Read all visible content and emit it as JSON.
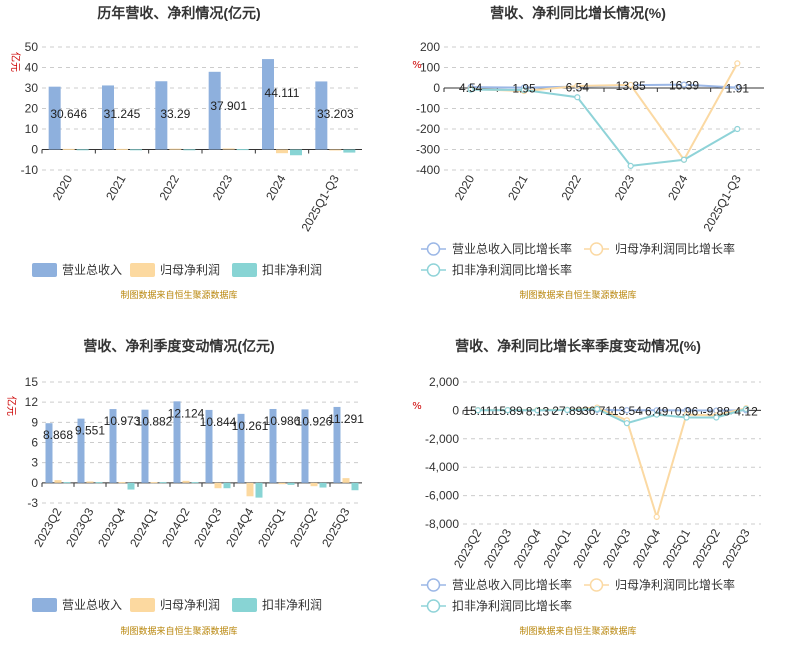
{
  "source_note": "制图数据来自恒生聚源数据库",
  "chart_data": [
    {
      "type": "bar",
      "title": "历年营收、净利情况(亿元)",
      "ylabel": "亿元",
      "ylim": [
        -10,
        50
      ],
      "yticks": [
        "-10",
        "0",
        "10",
        "20",
        "30",
        "40",
        "50"
      ],
      "categories": [
        "2020",
        "2021",
        "2022",
        "2023",
        "2024",
        "2025Q1-Q3"
      ],
      "series": [
        {
          "name": "营业总收入",
          "color": "#8eb0dd",
          "values": [
            30.646,
            31.245,
            33.29,
            37.901,
            44.111,
            33.203
          ],
          "labels": [
            "30.646",
            "31.245",
            "33.29",
            "37.901",
            "44.111",
            "33.203"
          ]
        },
        {
          "name": "归母净利润",
          "color": "#fcd9a0",
          "values": [
            0.3,
            0.3,
            0.4,
            0.5,
            -1.8,
            -0.3
          ]
        },
        {
          "name": "扣非净利润",
          "color": "#88d4d4",
          "values": [
            0.1,
            0.1,
            0.1,
            0.2,
            -2.8,
            -1.5
          ]
        }
      ],
      "grid": true,
      "legend": "bottom"
    },
    {
      "type": "line",
      "title": "营收、净利同比增长情况(%)",
      "ylabel": "%",
      "ylim": [
        -400,
        200
      ],
      "yticks": [
        "-400",
        "-300",
        "-200",
        "-100",
        "0",
        "100",
        "200"
      ],
      "categories": [
        "2020",
        "2021",
        "2022",
        "2023",
        "2024",
        "2025Q1-Q3"
      ],
      "series": [
        {
          "name": "营业总收入同比增长率",
          "color": "#9bb7e6",
          "values": [
            4.54,
            1.95,
            6.54,
            13.85,
            16.39,
            1.91
          ],
          "labels": [
            "4.54",
            "1.95",
            "6.54",
            "13.85",
            "16.39",
            "1.91"
          ]
        },
        {
          "name": "归母净利润同比增长率",
          "color": "#fbd9a3",
          "values": [
            -5,
            -15,
            10,
            15,
            -350,
            120
          ]
        },
        {
          "name": "扣非净利润同比增长率",
          "color": "#8fd3d8",
          "values": [
            -8,
            -10,
            -45,
            -380,
            -350,
            -200
          ]
        }
      ],
      "grid": true,
      "legend": "bottom"
    },
    {
      "type": "bar",
      "title": "营收、净利季度变动情况(亿元)",
      "ylabel": "亿元",
      "ylim": [
        -3,
        15
      ],
      "yticks": [
        "-3",
        "0",
        "3",
        "6",
        "9",
        "12",
        "15"
      ],
      "categories": [
        "2023Q2",
        "2023Q3",
        "2023Q4",
        "2024Q1",
        "2024Q2",
        "2024Q3",
        "2024Q4",
        "2025Q1",
        "2025Q2",
        "2025Q3"
      ],
      "series": [
        {
          "name": "营业总收入",
          "color": "#8eb0dd",
          "values": [
            8.868,
            9.551,
            10.973,
            10.882,
            12.124,
            10.844,
            10.261,
            10.986,
            10.926,
            11.291
          ],
          "labels": [
            "8.868",
            "9.551",
            "10.973",
            "10.882",
            "12.124",
            "10.844",
            "10.261",
            "10.986",
            "10.926",
            "11.291"
          ]
        },
        {
          "name": "归母净利润",
          "color": "#fcd9a0",
          "values": [
            0.4,
            0.2,
            0.1,
            0.1,
            0.3,
            -0.8,
            -2.0,
            -0.2,
            -0.5,
            0.7
          ]
        },
        {
          "name": "扣非净利润",
          "color": "#88d4d4",
          "values": [
            0.1,
            0.1,
            -1.0,
            0.1,
            0.1,
            -0.8,
            -2.2,
            -0.3,
            -0.7,
            -1.1
          ]
        }
      ],
      "grid": true,
      "legend": "bottom"
    },
    {
      "type": "line",
      "title": "营收、净利同比增长率季度变动情况(%)",
      "ylabel": "%",
      "ylim": [
        -8000,
        2000
      ],
      "yticks": [
        "-8,000",
        "-6,000",
        "-4,000",
        "-2,000",
        "0",
        "2,000"
      ],
      "categories": [
        "2023Q2",
        "2023Q3",
        "2023Q4",
        "2024Q1",
        "2024Q2",
        "2024Q3",
        "2024Q4",
        "2025Q1",
        "2025Q2",
        "2025Q3"
      ],
      "series": [
        {
          "name": "营业总收入同比增长率",
          "color": "#9bb7e6",
          "values": [
            15.11,
            15.89,
            8.13,
            27.89,
            36.71,
            13.54,
            6.49,
            0.96,
            -9.88,
            4.12
          ],
          "labels": [
            "15.11",
            "15.89",
            "8.13",
            "27.89",
            "36.71",
            "13.54",
            "6.49",
            "0.96",
            "-9.88",
            "4.12"
          ]
        },
        {
          "name": "归母净利润同比增长率",
          "color": "#fbd9a3",
          "values": [
            20,
            30,
            40,
            50,
            200,
            -700,
            -7500,
            -300,
            -350,
            150
          ]
        },
        {
          "name": "扣非净利润同比增长率",
          "color": "#8fd3d8",
          "values": [
            10,
            20,
            10,
            30,
            100,
            -900,
            -300,
            -500,
            -500,
            100
          ]
        }
      ],
      "grid": true,
      "legend": "bottom"
    }
  ]
}
